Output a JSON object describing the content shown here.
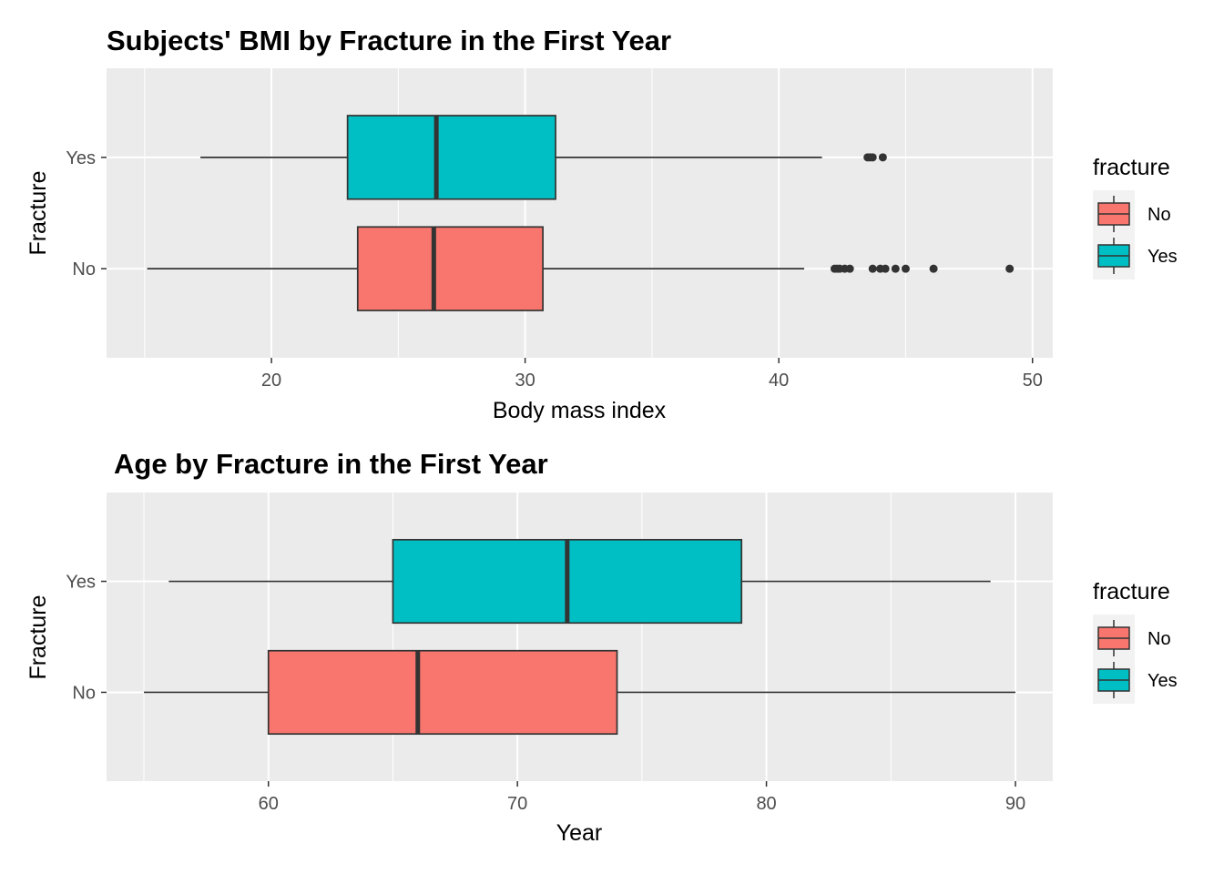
{
  "chart_data": [
    {
      "type": "boxplot",
      "orientation": "horizontal",
      "title": "Subjects' BMI by Fracture in the First Year",
      "xlabel": "Body mass index",
      "ylabel": "Fracture",
      "xlim": [
        13.5,
        50.8
      ],
      "xticks": [
        20,
        30,
        40,
        50
      ],
      "categories": [
        "No",
        "Yes"
      ],
      "grid": true,
      "legend": {
        "title": "fracture",
        "position": "right",
        "entries": [
          "No",
          "Yes"
        ]
      },
      "colors": {
        "No": "#F8766D",
        "Yes": "#00BFC4"
      },
      "series": [
        {
          "category": "No",
          "whisker_low": 15.1,
          "q1": 23.4,
          "median": 26.4,
          "q3": 30.7,
          "whisker_high": 41.0,
          "outliers": [
            42.2,
            42.3,
            42.4,
            42.6,
            42.8,
            43.7,
            44.0,
            44.2,
            44.6,
            45.0,
            46.1,
            49.1
          ]
        },
        {
          "category": "Yes",
          "whisker_low": 17.2,
          "q1": 23.0,
          "median": 26.5,
          "q3": 31.2,
          "whisker_high": 41.7,
          "outliers": [
            43.5,
            43.6,
            43.7,
            44.1
          ]
        }
      ]
    },
    {
      "type": "boxplot",
      "orientation": "horizontal",
      "title": "Age by Fracture in the First Year",
      "xlabel": "Year",
      "ylabel": "Fracture",
      "xlim": [
        53.5,
        91.5
      ],
      "xticks": [
        60,
        70,
        80,
        90
      ],
      "categories": [
        "No",
        "Yes"
      ],
      "grid": true,
      "legend": {
        "title": "fracture",
        "position": "right",
        "entries": [
          "No",
          "Yes"
        ]
      },
      "colors": {
        "No": "#F8766D",
        "Yes": "#00BFC4"
      },
      "series": [
        {
          "category": "No",
          "whisker_low": 55,
          "q1": 60,
          "median": 66,
          "q3": 74,
          "whisker_high": 90,
          "outliers": []
        },
        {
          "category": "Yes",
          "whisker_low": 56,
          "q1": 65,
          "median": 72,
          "q3": 79,
          "whisker_high": 89,
          "outliers": []
        }
      ]
    }
  ]
}
